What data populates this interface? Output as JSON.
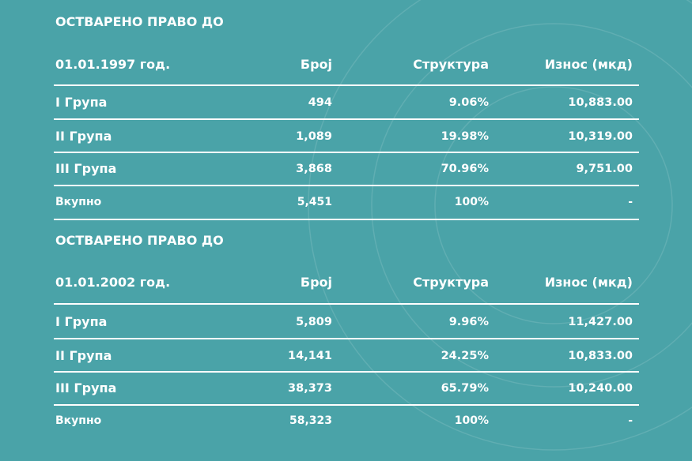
{
  "sections": [
    {
      "title": "ОСТВАРЕНО ПРАВО ДО",
      "header": [
        "01.01.1997 год.",
        "Број",
        "Структура",
        "Износ (мкд)"
      ],
      "rows": [
        [
          "I Група",
          "494",
          "9.06%",
          "10,883.00"
        ],
        [
          "II Група",
          "1,089",
          "19.98%",
          "10,319.00"
        ],
        [
          "III Група",
          "3,868",
          "70.96%",
          "9,751.00"
        ],
        [
          "Вкупно",
          "5,451",
          "100%",
          "-"
        ]
      ]
    },
    {
      "title": "ОСТВАРЕНО ПРАВО ДО",
      "header": [
        "01.01.2002 год.",
        "Број",
        "Структура",
        "Износ (мкд)"
      ],
      "rows": [
        [
          "I Група",
          "5,809",
          "9.96%",
          "11,427.00"
        ],
        [
          "II Група",
          "14,141",
          "24.25%",
          "10,833.00"
        ],
        [
          "III Група",
          "38,373",
          "65.79%",
          "10,240.00"
        ],
        [
          "Вкупно",
          "58,323",
          "100%",
          "-"
        ]
      ]
    }
  ]
}
